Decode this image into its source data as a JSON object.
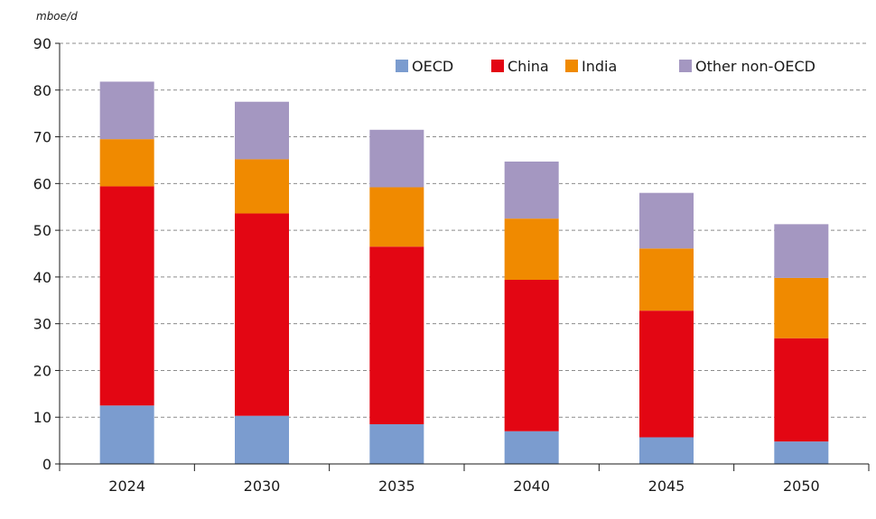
{
  "chart_data": {
    "type": "bar",
    "stacked": true,
    "unit_label": "mboe/d",
    "categories": [
      "2024",
      "2030",
      "2035",
      "2040",
      "2045",
      "2050"
    ],
    "series": [
      {
        "name": "OECD",
        "color": "#7b9ccf",
        "values": [
          12.5,
          10.3,
          8.5,
          7.0,
          5.7,
          4.8
        ]
      },
      {
        "name": "China",
        "color": "#e30613",
        "values": [
          46.9,
          43.3,
          38.0,
          32.4,
          27.1,
          22.1
        ]
      },
      {
        "name": "India",
        "color": "#f08a00",
        "values": [
          10.1,
          11.6,
          12.7,
          13.1,
          13.3,
          12.9
        ]
      },
      {
        "name": "Other non-OECD",
        "color": "#a497c1",
        "values": [
          12.3,
          12.3,
          12.3,
          12.2,
          11.9,
          11.5
        ]
      }
    ],
    "ylim": [
      0,
      90
    ],
    "yticks": [
      0,
      10,
      20,
      30,
      40,
      50,
      60,
      70,
      80,
      90
    ],
    "grid": "horizontal-dashed",
    "legend_position": "top-right"
  }
}
